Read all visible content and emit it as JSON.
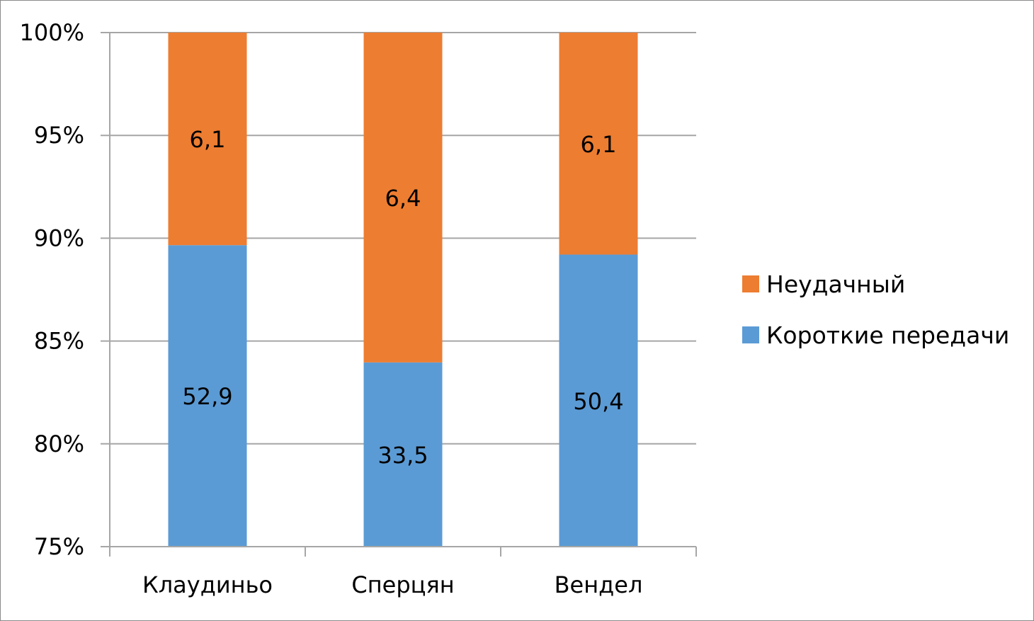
{
  "chart_data": {
    "type": "bar",
    "stacked": "percent",
    "categories": [
      "Клаудиньо",
      "Сперцян",
      "Вендел"
    ],
    "series": [
      {
        "name": "Короткие передачи",
        "values": [
          52.9,
          33.5,
          50.4
        ],
        "labels": [
          "52,9",
          "33,5",
          "50,4"
        ],
        "color": "#5b9bd5"
      },
      {
        "name": "Неудачный",
        "values": [
          6.1,
          6.4,
          6.1
        ],
        "labels": [
          "6,1",
          "6,4",
          "6,1"
        ],
        "color": "#ed7d31"
      }
    ],
    "yaxis": {
      "min": 75,
      "max": 100,
      "ticks": [
        {
          "value": 100,
          "label": "100%"
        },
        {
          "value": 95,
          "label": "95%"
        },
        {
          "value": 90,
          "label": "90%"
        },
        {
          "value": 85,
          "label": "85%"
        },
        {
          "value": 80,
          "label": "80%"
        },
        {
          "value": 75,
          "label": "75%"
        }
      ]
    },
    "grid": true,
    "legend": {
      "position": "right",
      "order": [
        "Неудачный",
        "Короткие передачи"
      ]
    },
    "title": "",
    "xlabel": "",
    "ylabel": ""
  }
}
